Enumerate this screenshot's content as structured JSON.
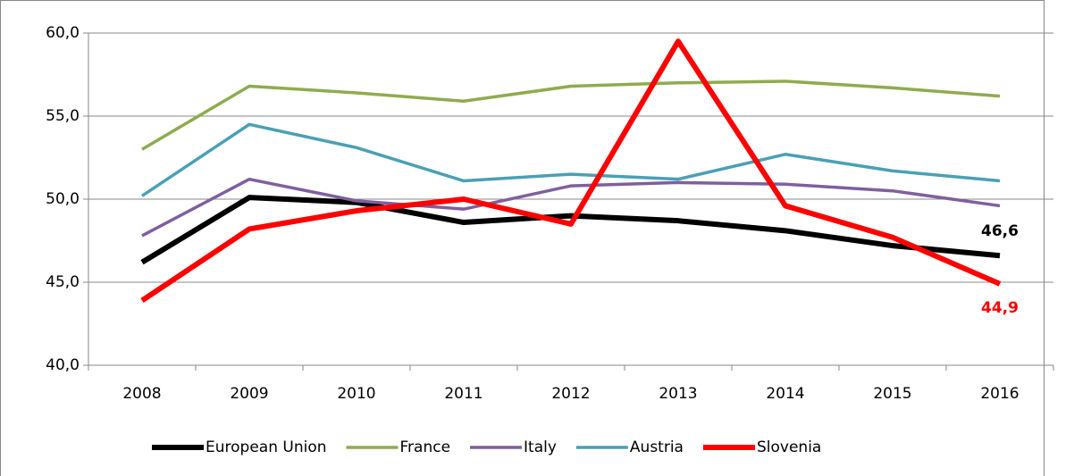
{
  "chart_data": {
    "type": "line",
    "categories": [
      "2008",
      "2009",
      "2010",
      "2011",
      "2012",
      "2013",
      "2014",
      "2015",
      "2016"
    ],
    "series": [
      {
        "name": "European Union",
        "color": "#000000",
        "values": [
          46.2,
          50.1,
          49.8,
          48.6,
          49.0,
          48.7,
          48.1,
          47.2,
          46.6
        ],
        "value_labels": [
          null,
          null,
          null,
          null,
          null,
          null,
          null,
          null,
          "46,6"
        ]
      },
      {
        "name": "France",
        "color": "#8eac4e",
        "values": [
          53.0,
          56.8,
          56.4,
          55.9,
          56.8,
          57.0,
          57.1,
          56.7,
          56.2
        ]
      },
      {
        "name": "Italy",
        "color": "#7f5f9f",
        "values": [
          47.8,
          51.2,
          49.9,
          49.4,
          50.8,
          51.0,
          50.9,
          50.5,
          49.6
        ]
      },
      {
        "name": "Austria",
        "color": "#4aa0b5",
        "values": [
          50.2,
          54.5,
          53.1,
          51.1,
          51.5,
          51.2,
          52.7,
          51.7,
          51.1
        ]
      },
      {
        "name": "Slovenia",
        "color": "#ff0000",
        "values": [
          43.9,
          48.2,
          49.3,
          50.0,
          48.5,
          59.5,
          49.6,
          47.7,
          44.9
        ],
        "value_labels": [
          null,
          null,
          null,
          null,
          null,
          null,
          null,
          null,
          "44,9"
        ]
      }
    ],
    "ylim": [
      40,
      60
    ],
    "yticks": [
      {
        "value": 40,
        "label": "40,0"
      },
      {
        "value": 45,
        "label": "45,0"
      },
      {
        "value": 50,
        "label": "50,0"
      },
      {
        "value": 55,
        "label": "55,0"
      },
      {
        "value": 60,
        "label": "60,0"
      }
    ],
    "grid": true
  }
}
